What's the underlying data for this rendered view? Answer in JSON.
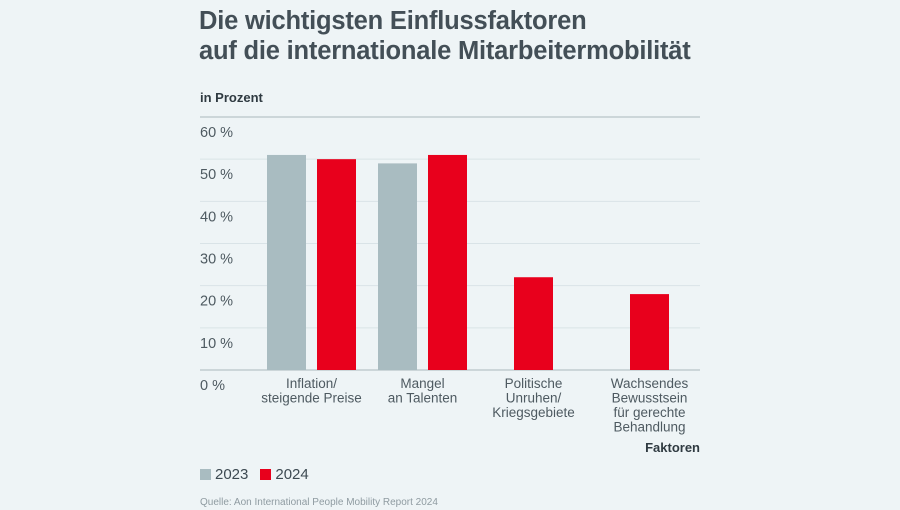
{
  "header": {
    "title_line1": "Die wichtigsten Einflussfaktoren",
    "title_line2": "auf die internationale Mitarbeitermobilität",
    "unit_label": "in Prozent"
  },
  "legend": [
    {
      "label": "2023",
      "color": "#a9bcc1"
    },
    {
      "label": "2024",
      "color": "#e8001c"
    }
  ],
  "source": "Quelle: Aon International People Mobility Report 2024",
  "chart_data": {
    "type": "bar",
    "title": "Die wichtigsten Einflussfaktoren auf die internationale Mitarbeitermobilität",
    "ylabel": "in Prozent",
    "xlabel": "Faktoren",
    "ylim": [
      0,
      60
    ],
    "yticks": [
      0,
      10,
      20,
      30,
      40,
      50,
      60
    ],
    "ytick_labels": [
      "0 %",
      "10 %",
      "20 %",
      "30 %",
      "40 %",
      "50 %",
      "60 %"
    ],
    "grid": true,
    "legend_position": "bottom-left",
    "categories": [
      [
        "Inflation/",
        "steigende Preise"
      ],
      [
        "Mangel",
        "an Talenten"
      ],
      [
        "Politische",
        "Unruhen/",
        "Kriegsgebiete"
      ],
      [
        "Wachsendes",
        "Bewusstsein",
        "für gerechte",
        "Behandlung"
      ]
    ],
    "series": [
      {
        "name": "2023",
        "color": "#a9bcc1",
        "values": [
          51,
          49,
          null,
          null
        ]
      },
      {
        "name": "2024",
        "color": "#e8001c",
        "values": [
          50,
          51,
          22,
          18
        ]
      }
    ]
  }
}
